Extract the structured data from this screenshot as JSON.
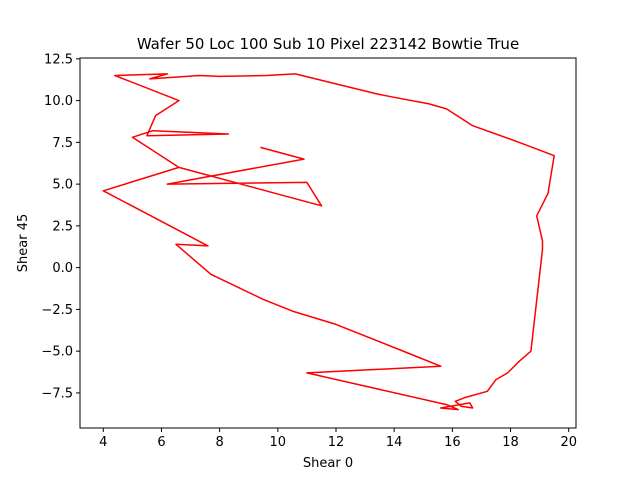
{
  "chart_data": {
    "type": "line",
    "title": "Wafer 50 Loc 100 Sub 10 Pixel 223142 Bowtie True",
    "xlabel": "Shear 0",
    "ylabel": "Shear 45",
    "xlim": [
      3.2,
      20.25
    ],
    "ylim": [
      -9.6,
      12.55
    ],
    "xticks": [
      4,
      6,
      8,
      10,
      12,
      14,
      16,
      18,
      20
    ],
    "xtick_labels": [
      "4",
      "6",
      "8",
      "10",
      "12",
      "14",
      "16",
      "18",
      "20"
    ],
    "yticks": [
      -7.5,
      -5.0,
      -2.5,
      0.0,
      2.5,
      5.0,
      7.5,
      10.0,
      12.5
    ],
    "ytick_labels": [
      "−7.5",
      "−5.0",
      "−2.5",
      "0.0",
      "2.5",
      "5.0",
      "7.5",
      "10.0",
      "12.5"
    ],
    "grid": false,
    "series": [
      {
        "color": "#ff0000",
        "points": [
          [
            9.4,
            7.2
          ],
          [
            10.9,
            6.5
          ],
          [
            6.2,
            5.0
          ],
          [
            11.0,
            5.1
          ],
          [
            11.5,
            3.7
          ],
          [
            6.6,
            6.0
          ],
          [
            5.0,
            7.8
          ],
          [
            5.7,
            8.2
          ],
          [
            8.3,
            8.0
          ],
          [
            5.5,
            7.9
          ],
          [
            5.8,
            9.1
          ],
          [
            6.6,
            10.0
          ],
          [
            4.4,
            11.5
          ],
          [
            6.2,
            11.6
          ],
          [
            5.6,
            11.3
          ],
          [
            7.3,
            11.5
          ],
          [
            8.0,
            11.45
          ],
          [
            9.6,
            11.5
          ],
          [
            10.6,
            11.6
          ],
          [
            13.4,
            10.4
          ],
          [
            14.0,
            10.2
          ],
          [
            15.2,
            9.8
          ],
          [
            15.8,
            9.5
          ],
          [
            16.7,
            8.5
          ],
          [
            18.3,
            7.5
          ],
          [
            19.5,
            6.7
          ],
          [
            19.3,
            4.6
          ],
          [
            19.3,
            4.5
          ],
          [
            18.9,
            3.1
          ],
          [
            19.1,
            1.6
          ],
          [
            19.1,
            1.1
          ],
          [
            18.7,
            -5.0
          ],
          [
            18.3,
            -5.6
          ],
          [
            17.9,
            -6.3
          ],
          [
            17.5,
            -6.7
          ],
          [
            17.2,
            -7.4
          ],
          [
            16.4,
            -7.8
          ],
          [
            16.1,
            -8.0
          ],
          [
            16.3,
            -8.3
          ],
          [
            16.7,
            -8.4
          ],
          [
            16.6,
            -8.1
          ],
          [
            15.6,
            -8.4
          ],
          [
            16.2,
            -8.5
          ],
          [
            15.8,
            -8.2
          ],
          [
            11.0,
            -6.3
          ],
          [
            15.6,
            -5.9
          ],
          [
            14.6,
            -5.2
          ],
          [
            12.0,
            -3.4
          ],
          [
            10.5,
            -2.6
          ],
          [
            9.5,
            -1.9
          ],
          [
            7.7,
            -0.4
          ],
          [
            6.5,
            1.4
          ],
          [
            7.6,
            1.3
          ],
          [
            4.0,
            4.6
          ],
          [
            6.6,
            6.0
          ]
        ]
      }
    ]
  }
}
